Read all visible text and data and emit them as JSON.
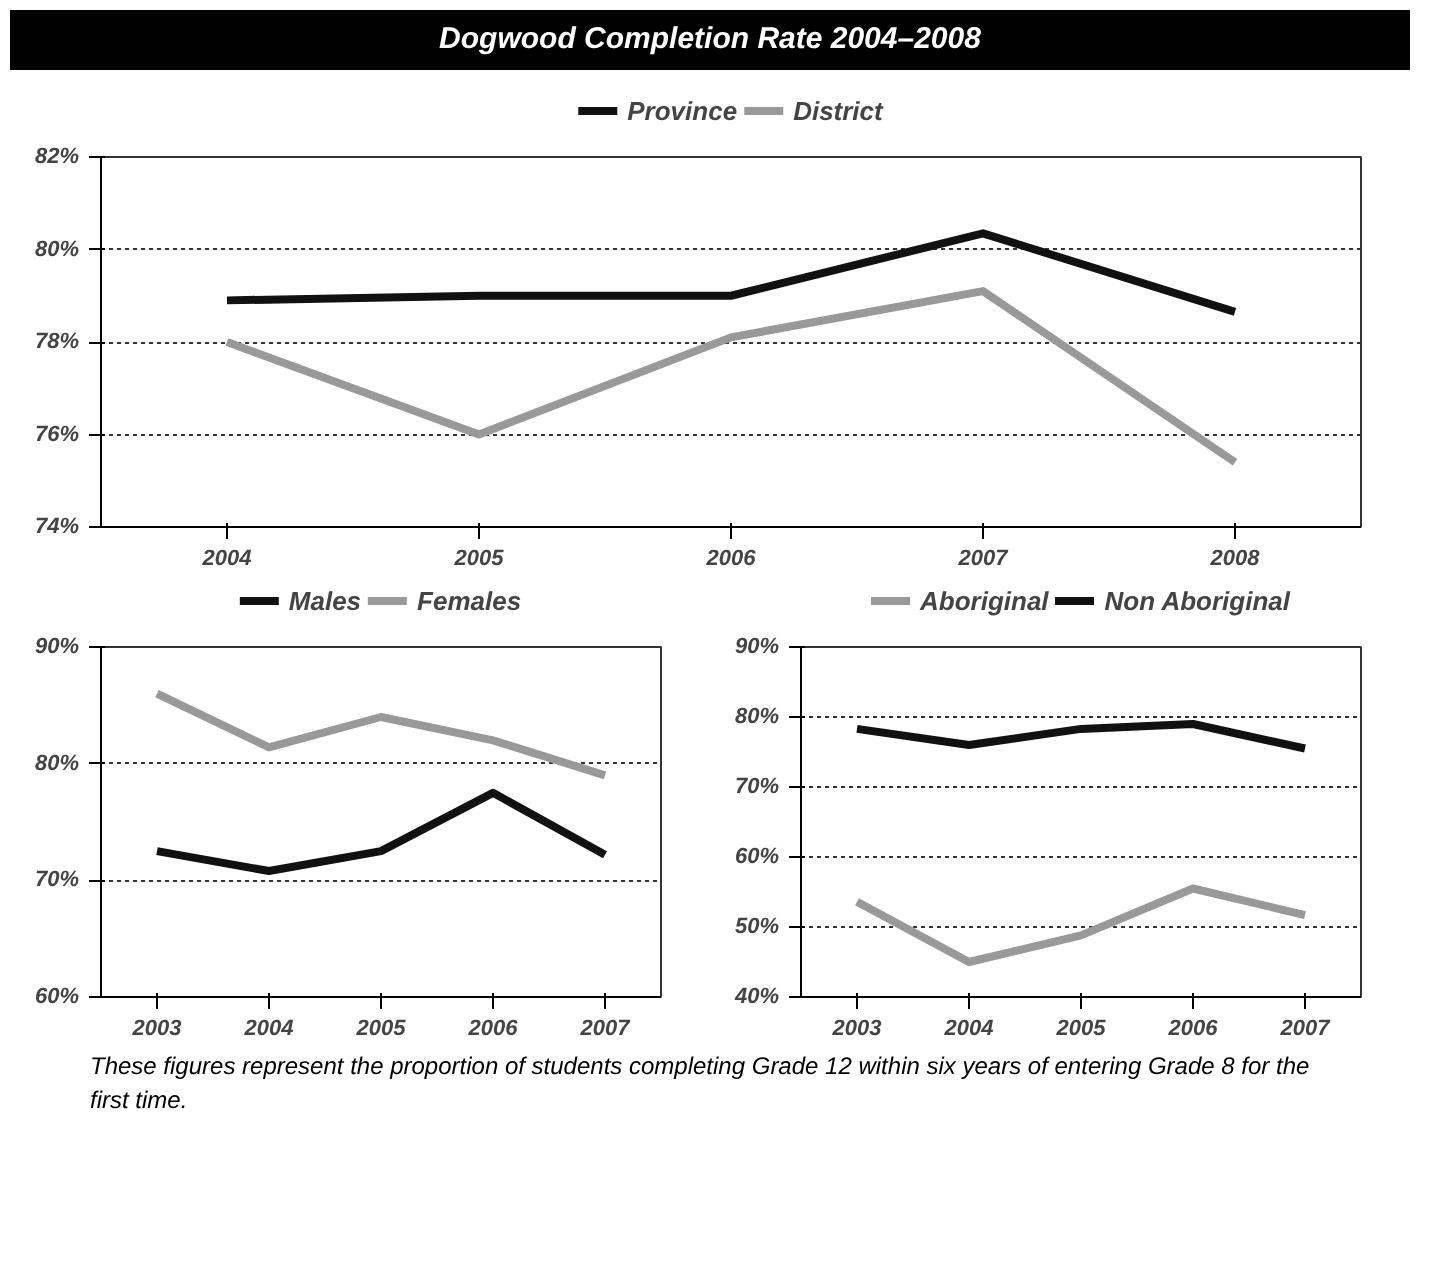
{
  "chart_data": [
    {
      "type": "line",
      "title": "Dogwood Completion Rate 2004–2008",
      "categories": [
        "2004",
        "2005",
        "2006",
        "2007",
        "2008"
      ],
      "series": [
        {
          "name": "Province",
          "color": "#111111",
          "values": [
            78.9,
            79.0,
            79.0,
            80.35,
            78.65
          ]
        },
        {
          "name": "District",
          "color": "#999999",
          "values": [
            78.0,
            76.0,
            78.1,
            79.1,
            75.4
          ]
        }
      ],
      "ylim": [
        74,
        82
      ],
      "yticks": [
        {
          "value": 74,
          "label": "74%"
        },
        {
          "value": 76,
          "label": "76%"
        },
        {
          "value": 78,
          "label": "78%"
        },
        {
          "value": 80,
          "label": "80%"
        },
        {
          "value": 82,
          "label": "82%"
        }
      ],
      "grid": "y",
      "legend": "top",
      "line_style": "solid",
      "marker": "none"
    },
    {
      "type": "line",
      "categories": [
        "2003",
        "2004",
        "2005",
        "2006",
        "2007"
      ],
      "series": [
        {
          "name": "Males",
          "color": "#111111",
          "values": [
            72.5,
            70.8,
            72.5,
            77.5,
            72.2
          ]
        },
        {
          "name": "Females",
          "color": "#999999",
          "values": [
            86.0,
            81.4,
            84.0,
            82.0,
            79.0
          ]
        }
      ],
      "ylim": [
        60,
        90
      ],
      "yticks": [
        {
          "value": 60,
          "label": "60%"
        },
        {
          "value": 70,
          "label": "70%"
        },
        {
          "value": 80,
          "label": "80%"
        },
        {
          "value": 90,
          "label": "90%"
        }
      ],
      "grid": "y",
      "legend": "top",
      "line_style": "solid",
      "marker": "none"
    },
    {
      "type": "line",
      "categories": [
        "2003",
        "2004",
        "2005",
        "2006",
        "2007"
      ],
      "series": [
        {
          "name": "Aboriginal",
          "color": "#999999",
          "values": [
            53.6,
            45.0,
            48.8,
            55.5,
            51.7
          ]
        },
        {
          "name": "Non Aboriginal",
          "color": "#111111",
          "values": [
            78.3,
            76.0,
            78.3,
            79.0,
            75.5
          ]
        }
      ],
      "ylim": [
        40,
        90
      ],
      "yticks": [
        {
          "value": 40,
          "label": "40%"
        },
        {
          "value": 50,
          "label": "50%"
        },
        {
          "value": 60,
          "label": "60%"
        },
        {
          "value": 70,
          "label": "70%"
        },
        {
          "value": 80,
          "label": "80%"
        },
        {
          "value": 90,
          "label": "90%"
        }
      ],
      "grid": "y",
      "legend": "top",
      "line_style": "solid",
      "marker": "none",
      "annotations": [
        "These figures represent the proportion of students completing Grade 12 within six years of entering Grade 8 for the first time."
      ]
    }
  ]
}
